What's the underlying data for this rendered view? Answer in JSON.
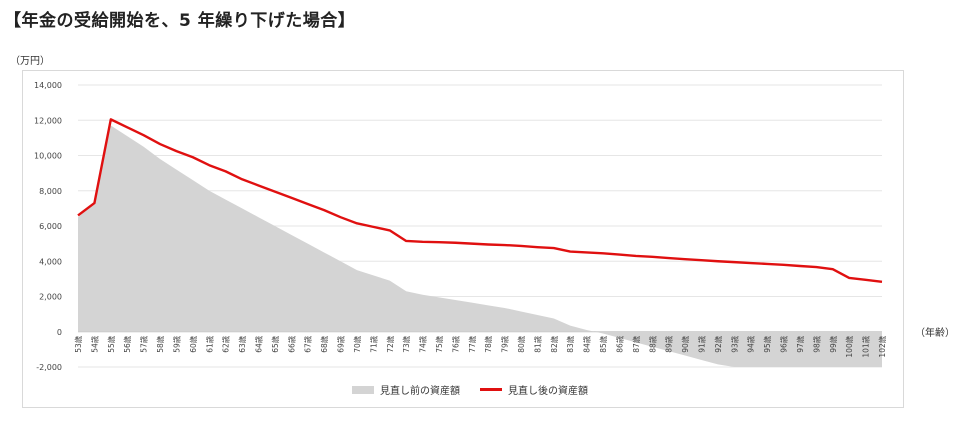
{
  "title": "【年金の受給開始を、5 年繰り下げた場合】",
  "y_unit": "（万円）",
  "x_unit": "（年齢）",
  "chart_data": {
    "type": "area",
    "x": [
      "53歳",
      "54歳",
      "55歳",
      "56歳",
      "57歳",
      "58歳",
      "59歳",
      "60歳",
      "61歳",
      "62歳",
      "63歳",
      "64歳",
      "65歳",
      "66歳",
      "67歳",
      "68歳",
      "69歳",
      "70歳",
      "71歳",
      "72歳",
      "73歳",
      "74歳",
      "75歳",
      "76歳",
      "77歳",
      "78歳",
      "79歳",
      "80歳",
      "81歳",
      "82歳",
      "83歳",
      "84歳",
      "85歳",
      "86歳",
      "87歳",
      "88歳",
      "89歳",
      "90歳",
      "91歳",
      "92歳",
      "93歳",
      "94歳",
      "95歳",
      "96歳",
      "97歳",
      "98歳",
      "99歳",
      "100歳",
      "101歳",
      "102歳"
    ],
    "series": [
      {
        "name": "見直し前の資産額",
        "type": "area",
        "color": "#d4d4d4",
        "values": [
          6500,
          7300,
          11700,
          11100,
          10500,
          9800,
          9200,
          8600,
          8000,
          7500,
          7000,
          6500,
          6000,
          5500,
          5000,
          4500,
          4000,
          3500,
          3200,
          2900,
          2300,
          2100,
          1950,
          1800,
          1650,
          1500,
          1350,
          1150,
          950,
          750,
          350,
          100,
          -100,
          -350,
          -600,
          -850,
          -1100,
          -1350,
          -1600,
          -1850,
          -2000,
          -2000,
          -2000,
          -2000,
          -2000,
          -2000,
          -2000,
          -2000,
          -2000,
          -2000
        ]
      },
      {
        "name": "見直し後の資産額",
        "type": "line",
        "color": "#e01010",
        "values": [
          6600,
          7300,
          12050,
          11600,
          11150,
          10650,
          10250,
          9900,
          9450,
          9100,
          8650,
          8300,
          7950,
          7600,
          7250,
          6900,
          6500,
          6150,
          5950,
          5750,
          5150,
          5100,
          5080,
          5050,
          5000,
          4950,
          4920,
          4870,
          4800,
          4750,
          4550,
          4500,
          4450,
          4380,
          4300,
          4250,
          4180,
          4120,
          4060,
          4000,
          3950,
          3900,
          3850,
          3800,
          3730,
          3670,
          3550,
          3050,
          2950,
          2830
        ]
      }
    ],
    "y_ticks": [
      "14,000",
      "12,000",
      "10,000",
      "8,000",
      "6,000",
      "4,000",
      "2,000",
      "0",
      "-2,000"
    ],
    "ylim": [
      -2000,
      14000
    ],
    "grid": true,
    "legend_position": "bottom"
  }
}
